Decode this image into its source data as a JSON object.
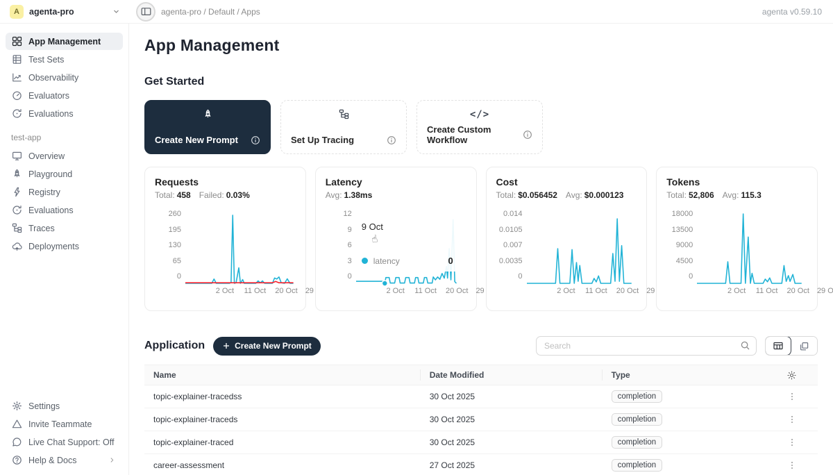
{
  "topbar": {
    "avatar_letter": "A",
    "workspace": "agenta-pro",
    "breadcrumb": "agenta-pro / Default / Apps",
    "version": "agenta v0.59.10"
  },
  "sidebar": {
    "main_items": [
      {
        "label": "App Management",
        "icon": "grid-icon",
        "active": true
      },
      {
        "label": "Test Sets",
        "icon": "table-icon",
        "active": false
      },
      {
        "label": "Observability",
        "icon": "chart-line-icon",
        "active": false
      },
      {
        "label": "Evaluators",
        "icon": "gauge-icon",
        "active": false
      },
      {
        "label": "Evaluations",
        "icon": "refresh-icon",
        "active": false
      }
    ],
    "project_label": "test-app",
    "project_items": [
      {
        "label": "Overview",
        "icon": "monitor-icon"
      },
      {
        "label": "Playground",
        "icon": "rocket-icon"
      },
      {
        "label": "Registry",
        "icon": "lightning-icon"
      },
      {
        "label": "Evaluations",
        "icon": "refresh-icon"
      },
      {
        "label": "Traces",
        "icon": "tree-icon"
      },
      {
        "label": "Deployments",
        "icon": "cloud-up-icon"
      }
    ],
    "footer_items": [
      {
        "label": "Settings",
        "icon": "gear-icon"
      },
      {
        "label": "Invite Teammate",
        "icon": "triangle-icon"
      },
      {
        "label": "Live Chat Support: Off",
        "icon": "chat-icon"
      },
      {
        "label": "Help & Docs",
        "icon": "question-icon",
        "chevron": true
      }
    ]
  },
  "page": {
    "title": "App Management",
    "get_started_title": "Get Started",
    "get_started_cards": [
      {
        "label": "Create New Prompt",
        "icon": "rocket-icon",
        "dark": true
      },
      {
        "label": "Set Up Tracing",
        "icon": "tree-icon",
        "dark": false
      },
      {
        "label": "Create Custom Workflow",
        "icon": "code-icon",
        "dark": false
      }
    ]
  },
  "colors": {
    "line_blue": "#21b3d6",
    "line_red": "#f5222d",
    "navy": "#1d2d3e"
  },
  "chart_data": [
    {
      "type": "line",
      "title": "Requests",
      "stats": [
        {
          "label": "Total:",
          "value": "458"
        },
        {
          "label": "Failed:",
          "value": "0.03%"
        }
      ],
      "ylim": [
        0,
        260
      ],
      "y_ticks": [
        "260",
        "195",
        "130",
        "65",
        "0"
      ],
      "x_ticks": [
        "2 Oct",
        "11 Oct",
        "20 Oct",
        "29 Oct"
      ],
      "x_tick_pos": [
        8,
        35,
        63,
        90
      ],
      "series": [
        {
          "name": "requests",
          "color": "#21b3d6",
          "points": [
            [
              0,
              0
            ],
            [
              24,
              0
            ],
            [
              26,
              16
            ],
            [
              28,
              0
            ],
            [
              40,
              0
            ],
            [
              41.5,
              3
            ],
            [
              43,
              255
            ],
            [
              44.5,
              0
            ],
            [
              46,
              2
            ],
            [
              48.5,
              58
            ],
            [
              50,
              0
            ],
            [
              52,
              14
            ],
            [
              53.5,
              0
            ],
            [
              64,
              0
            ],
            [
              66,
              9
            ],
            [
              68,
              2
            ],
            [
              70,
              9
            ],
            [
              72,
              0
            ],
            [
              79,
              0
            ],
            [
              81,
              20
            ],
            [
              83,
              16
            ],
            [
              85,
              24
            ],
            [
              87,
              2
            ],
            [
              90,
              0
            ],
            [
              92.5,
              17
            ],
            [
              95,
              0
            ],
            [
              98,
              0
            ]
          ]
        },
        {
          "name": "failed",
          "color": "#f5222d",
          "points": [
            [
              0,
              2
            ],
            [
              79,
              2
            ],
            [
              82,
              7
            ],
            [
              85,
              2
            ],
            [
              98,
              2
            ]
          ]
        }
      ]
    },
    {
      "type": "line",
      "title": "Latency",
      "stats": [
        {
          "label": "Avg:",
          "value": "1.38ms"
        }
      ],
      "ylim": [
        0,
        12
      ],
      "y_ticks": [
        "12",
        "9",
        "6",
        "3",
        "0"
      ],
      "x_ticks": [
        "2 Oct",
        "11 Oct",
        "20 Oct",
        "29 Oct"
      ],
      "x_tick_pos": [
        8,
        35,
        63,
        90
      ],
      "series": [
        {
          "name": "latency",
          "color": "#21b3d6",
          "points": [
            [
              0,
              0.35
            ],
            [
              24,
              0.35
            ],
            [
              25,
              0.05
            ],
            [
              26,
              0.05
            ],
            [
              27,
              1
            ],
            [
              30,
              1
            ],
            [
              31,
              0.05
            ],
            [
              35,
              0.05
            ],
            [
              36,
              1
            ],
            [
              39,
              1
            ],
            [
              40,
              0.05
            ],
            [
              44,
              0.05
            ],
            [
              45,
              1
            ],
            [
              48,
              1
            ],
            [
              49,
              0.05
            ],
            [
              53,
              0.05
            ],
            [
              54,
              1
            ],
            [
              56,
              1
            ],
            [
              57,
              0.05
            ],
            [
              61,
              0.05
            ],
            [
              62,
              1
            ],
            [
              64,
              1
            ],
            [
              65,
              0.05
            ],
            [
              69,
              0.05
            ],
            [
              70,
              1.1
            ],
            [
              72,
              0.6
            ],
            [
              74,
              1.1
            ],
            [
              76,
              0.7
            ],
            [
              78,
              1.7
            ],
            [
              80,
              0.9
            ],
            [
              82,
              2.9
            ],
            [
              83,
              0.9
            ],
            [
              84.5,
              6
            ],
            [
              86,
              0.6
            ],
            [
              88,
              11
            ],
            [
              89.5,
              0.3
            ],
            [
              91,
              0
            ]
          ]
        }
      ],
      "marker": {
        "x": 26,
        "y": 0
      },
      "tooltip": {
        "date": "9 Oct",
        "series": "latency",
        "value": "0",
        "hand_glyph": "☝"
      }
    },
    {
      "type": "line",
      "title": "Cost",
      "stats": [
        {
          "label": "Total:",
          "value": "$0.056452"
        },
        {
          "label": "Avg:",
          "value": "$0.000123"
        }
      ],
      "ylim": [
        0,
        0.014
      ],
      "y_ticks": [
        "0.014",
        "0.0105",
        "0.007",
        "0.0035",
        "0"
      ],
      "x_ticks": [
        "2 Oct",
        "11 Oct",
        "20 Oct",
        "29 Oct"
      ],
      "x_tick_pos": [
        8,
        35,
        63,
        90
      ],
      "series": [
        {
          "name": "cost",
          "color": "#21b3d6",
          "points": [
            [
              0,
              0
            ],
            [
              26,
              0
            ],
            [
              28,
              0.007
            ],
            [
              30,
              0
            ],
            [
              39,
              0
            ],
            [
              41,
              0.0068
            ],
            [
              43,
              0
            ],
            [
              45,
              0.0042
            ],
            [
              46.5,
              0.0004
            ],
            [
              48,
              0.0036
            ],
            [
              50,
              0
            ],
            [
              59,
              0
            ],
            [
              61,
              0.001
            ],
            [
              63,
              0.0003
            ],
            [
              65,
              0.0015
            ],
            [
              67,
              0
            ],
            [
              76,
              0
            ],
            [
              78,
              0.006
            ],
            [
              80,
              0.0004
            ],
            [
              82,
              0.013
            ],
            [
              84,
              0.0004
            ],
            [
              86,
              0.0076
            ],
            [
              88,
              0
            ],
            [
              95,
              0
            ]
          ]
        }
      ]
    },
    {
      "type": "line",
      "title": "Tokens",
      "stats": [
        {
          "label": "Total:",
          "value": "52,806"
        },
        {
          "label": "Avg:",
          "value": "115.3"
        }
      ],
      "ylim": [
        0,
        18000
      ],
      "y_ticks": [
        "18000",
        "13500",
        "9000",
        "4500",
        "0"
      ],
      "x_ticks": [
        "2 Oct",
        "11 Oct",
        "20 Oct",
        "29 Oct"
      ],
      "x_tick_pos": [
        8,
        35,
        63,
        90
      ],
      "series": [
        {
          "name": "tokens",
          "color": "#21b3d6",
          "points": [
            [
              0,
              0
            ],
            [
              26,
              0
            ],
            [
              28,
              5600
            ],
            [
              30,
              0
            ],
            [
              40,
              0
            ],
            [
              42,
              18000
            ],
            [
              44,
              0
            ],
            [
              46.5,
              12000
            ],
            [
              48.5,
              0
            ],
            [
              50,
              2600
            ],
            [
              52,
              0
            ],
            [
              60,
              0
            ],
            [
              62,
              1100
            ],
            [
              64,
              400
            ],
            [
              66,
              1400
            ],
            [
              68,
              0
            ],
            [
              77,
              0
            ],
            [
              79,
              4600
            ],
            [
              81,
              500
            ],
            [
              83,
              2000
            ],
            [
              84.5,
              500
            ],
            [
              87,
              2300
            ],
            [
              89,
              0
            ],
            [
              95,
              0
            ]
          ]
        }
      ]
    }
  ],
  "application": {
    "title": "Application",
    "create_button_label": "Create New Prompt",
    "search_placeholder": "Search",
    "table": {
      "headers": [
        "Name",
        "Date Modified",
        "Type"
      ],
      "rows": [
        {
          "name": "topic-explainer-tracedss",
          "date": "30 Oct 2025",
          "type": "completion"
        },
        {
          "name": "topic-explainer-traceds",
          "date": "30 Oct 2025",
          "type": "completion"
        },
        {
          "name": "topic-explainer-traced",
          "date": "30 Oct 2025",
          "type": "completion"
        },
        {
          "name": "career-assessment",
          "date": "27 Oct 2025",
          "type": "completion"
        }
      ]
    }
  }
}
